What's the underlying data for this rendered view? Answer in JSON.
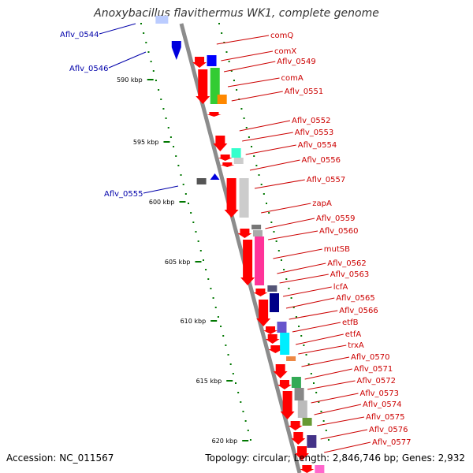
{
  "title": "Anoxybacillus flavithermus WK1, complete genome",
  "footer": {
    "accession": "Accession: NC_011567",
    "stats": "Topology: circular; Length: 2,846,746 bp; Genes: 2,932"
  },
  "colors": {
    "forward_label": "#cc0000",
    "reverse_label": "#0000aa",
    "cds_arrow": "#ff0000",
    "backbone": "#8c8c8c",
    "tick": "#007700"
  },
  "ruler": [
    "590 kbp",
    "595 kbp",
    "600 kbp",
    "605 kbp",
    "610 kbp",
    "615 kbp",
    "620 kbp"
  ],
  "left_labels": [
    "Aflv_0544",
    "Aflv_0546",
    "Aflv_0555"
  ],
  "right_labels": [
    "comQ",
    "comX",
    "Aflv_0549",
    "comA",
    "Aflv_0551",
    "Aflv_0552",
    "Aflv_0553",
    "Aflv_0554",
    "Aflv_0556",
    "Aflv_0557",
    "zapA",
    "Aflv_0559",
    "Aflv_0560",
    "mutSB",
    "Aflv_0562",
    "Aflv_0563",
    "lcfA",
    "Aflv_0565",
    "Aflv_0566",
    "etfB",
    "etfA",
    "trxA",
    "Aflv_0570",
    "Aflv_0571",
    "Aflv_0572",
    "Aflv_0573",
    "Aflv_0574",
    "Aflv_0575",
    "Aflv_0576",
    "Aflv_0577"
  ]
}
